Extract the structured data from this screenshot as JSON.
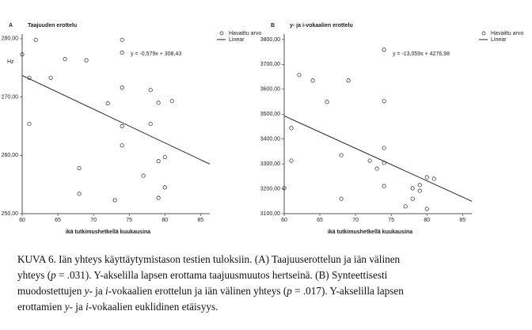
{
  "chart_data": [
    {
      "type": "scatter",
      "panel": "A",
      "title": "Taajuuden erottelu",
      "xlabel": "ikä tutkimushetkellä kuukausina",
      "ylabel": "Hz",
      "annotation": "y = -0,579x + 308,43",
      "xlim": [
        60,
        86.3
      ],
      "ylim": [
        250,
        280.8
      ],
      "xticks": [
        60,
        65,
        70,
        75,
        80,
        85
      ],
      "yticks": [
        {
          "value": 250,
          "label": "250,00"
        },
        {
          "value": 260,
          "label": "260,00"
        },
        {
          "value": 270,
          "label": "270,00"
        },
        {
          "value": 280,
          "label": "280,00"
        }
      ],
      "series": [
        {
          "name": "Havaittu arvo",
          "type": "scatter",
          "color": "#222222",
          "x": [
            60,
            61.9,
            61,
            61,
            66,
            64,
            69,
            74,
            74,
            74,
            72,
            78,
            79.1,
            81,
            74,
            78,
            74,
            68,
            77,
            80,
            79.1,
            68,
            80,
            73,
            79.1
          ],
          "values": [
            277.3,
            279.8,
            273.3,
            265.4,
            276.5,
            273.3,
            276.3,
            279.8,
            277.6,
            271.6,
            268.9,
            271.2,
            269,
            269.3,
            265,
            265.4,
            261.7,
            257.8,
            256.5,
            259.7,
            259,
            253.4,
            254.5,
            252.3,
            252.7
          ]
        },
        {
          "name": "Linear",
          "type": "line",
          "color": "#222222",
          "x": [
            60,
            86.3
          ],
          "values": [
            273.7,
            258.5
          ]
        }
      ]
    },
    {
      "type": "scatter",
      "panel": "B",
      "title": "y- ja i-vokaalien erottelu",
      "xlabel": "ikä tutkimushetkellä kuukausina",
      "annotation": "y = -13,059x + 4276,98",
      "xlim": [
        60,
        86.3
      ],
      "ylim": [
        3100,
        3822
      ],
      "xticks": [
        60,
        65,
        70,
        75,
        80,
        85
      ],
      "yticks": [
        {
          "value": 3100,
          "label": "3100,00"
        },
        {
          "value": 3200,
          "label": "3200,00"
        },
        {
          "value": 3300,
          "label": "3300,00"
        },
        {
          "value": 3400,
          "label": "3400,00"
        },
        {
          "value": 3500,
          "label": "3500,00"
        },
        {
          "value": 3600,
          "label": "3600,00"
        },
        {
          "value": 3700,
          "label": "3700,00"
        },
        {
          "value": 3800,
          "label": "3800,00"
        }
      ],
      "series": [
        {
          "name": "Havaittu arvo",
          "type": "scatter",
          "color": "#222222",
          "x": [
            60,
            61,
            61,
            62.1,
            64,
            66,
            69,
            74,
            74,
            74,
            74,
            74,
            72,
            73,
            68,
            68,
            77,
            78,
            78,
            79,
            79,
            80,
            81,
            80
          ],
          "values": [
            3202,
            3444,
            3313,
            3657,
            3635,
            3549,
            3635,
            3759,
            3552,
            3364,
            3304,
            3211,
            3313,
            3281,
            3335,
            3160,
            3129,
            3202,
            3160,
            3215,
            3192,
            3246,
            3240,
            3119
          ]
        },
        {
          "name": "Linear",
          "type": "line",
          "color": "#222222",
          "x": [
            60,
            86.3
          ],
          "values": [
            3493,
            3150
          ]
        }
      ]
    }
  ],
  "caption": {
    "lines": [
      [
        {
          "text": "KUVA 6. Iän yhteys käyttäytymistason testien tuloksiin. (A) Taajuuserottelun ja iän välinen",
          "italic": false
        }
      ],
      [
        {
          "text": "yhteys (",
          "italic": false
        },
        {
          "text": "p",
          "italic": true
        },
        {
          "text": " = .031).  Y-akselilla lapsen erottama taajuusmuutos hertseinä. (B) Synteettisesti",
          "italic": false
        }
      ],
      [
        {
          "text": "muodostettujen ",
          "italic": false
        },
        {
          "text": "y",
          "italic": true
        },
        {
          "text": "- ja ",
          "italic": false
        },
        {
          "text": "i",
          "italic": true
        },
        {
          "text": "-vokaalien erottelun ja iän välinen yhteys (",
          "italic": false
        },
        {
          "text": "p",
          "italic": true
        },
        {
          "text": " = .017).  Y-akselilla lapsen",
          "italic": false
        }
      ],
      [
        {
          "text": "erottamien ",
          "italic": false
        },
        {
          "text": "y",
          "italic": true
        },
        {
          "text": "- ja ",
          "italic": false
        },
        {
          "text": "i",
          "italic": true
        },
        {
          "text": "-vokaalien euklidinen etäisyys.",
          "italic": false
        }
      ]
    ]
  }
}
